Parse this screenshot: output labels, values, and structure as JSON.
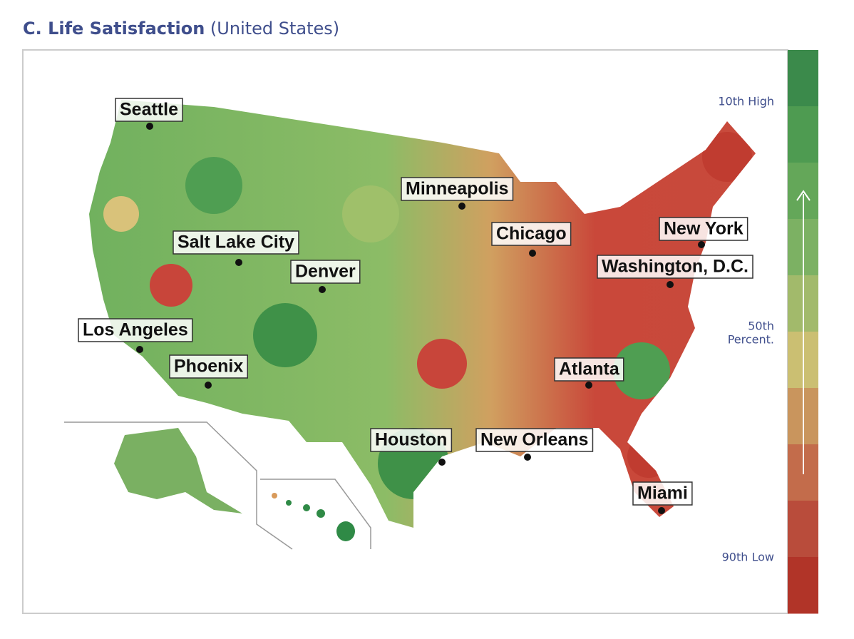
{
  "header": {
    "title": "C. Life Satisfaction",
    "subtitle": "(United States)"
  },
  "cities": [
    "Seattle",
    "Minneapolis",
    "Salt Lake City",
    "Chicago",
    "New York",
    "Washington, D.C.",
    "Denver",
    "Los Angeles",
    "Phoenix",
    "Atlanta",
    "Houston",
    "New Orleans",
    "Miami"
  ],
  "legend": {
    "top": "10th High",
    "middle": [
      "50th",
      "Percent."
    ],
    "bottom": "90th Low",
    "colors": [
      "#3b8a4b",
      "#4e9b51",
      "#64a759",
      "#7cb163",
      "#a2ba6b",
      "#cbbf72",
      "#c9955d",
      "#c36c4b",
      "#b94c3b",
      "#b13428"
    ]
  }
}
